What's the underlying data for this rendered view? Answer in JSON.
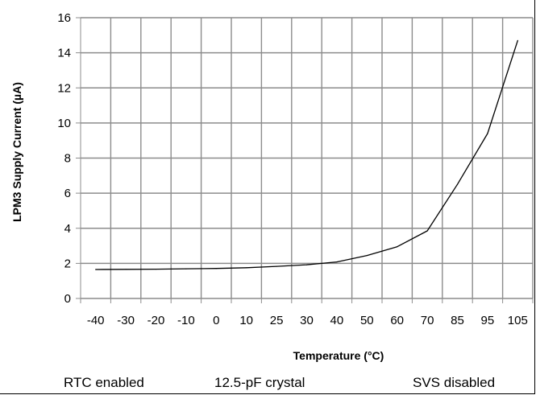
{
  "chart_data": {
    "type": "line",
    "title": "",
    "xlabel": "Temperature (°C)",
    "ylabel": "LPM3 Supply Current (µA)",
    "categories": [
      "-40",
      "-30",
      "-20",
      "-10",
      "0",
      "10",
      "25",
      "30",
      "40",
      "50",
      "60",
      "70",
      "85",
      "95",
      "105"
    ],
    "series": [
      {
        "values": [
          1.65,
          1.66,
          1.67,
          1.69,
          1.71,
          1.75,
          1.83,
          1.92,
          2.08,
          2.45,
          2.95,
          3.85,
          6.5,
          9.4,
          14.7
        ]
      }
    ],
    "ylim": [
      0,
      16
    ],
    "yticks": [
      0,
      2,
      4,
      6,
      8,
      10,
      12,
      14,
      16
    ],
    "grid": true,
    "line_color": "#000000",
    "grid_color": "#8c8c8c"
  },
  "notes": {
    "rtc": "RTC enabled",
    "crystal": "12.5-pF crystal",
    "svs": "SVS disabled"
  }
}
